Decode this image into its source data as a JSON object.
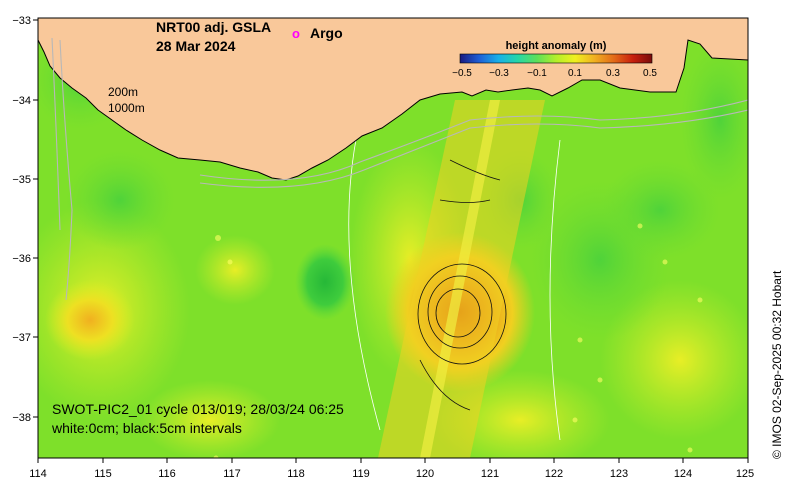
{
  "title": {
    "product": "NRT00 adj. GSLA",
    "date": "28 Mar 2024"
  },
  "argo_legend": {
    "marker": "o",
    "label": "Argo",
    "color": "#ff00ff"
  },
  "colorbar": {
    "title": "height anomaly (m)",
    "ticks": [
      "−0.5",
      "−0.3",
      "−0.1",
      "0.1",
      "0.3",
      "0.5"
    ],
    "colors": [
      "#1a1a80",
      "#1f5fd6",
      "#19b0e8",
      "#26d6a8",
      "#5ce05a",
      "#b3ef2a",
      "#f0f020",
      "#f0b020",
      "#e36b18",
      "#c8200e",
      "#7a0c0c"
    ]
  },
  "isobaths": [
    "200m",
    "1000m"
  ],
  "caption": {
    "line1": "SWOT-PIC2_01 cycle 013/019; 28/03/24 06:25",
    "line2": "white:0cm; black:5cm intervals"
  },
  "credit": "© IMOS 02-Sep-2025 00:32 Hobart",
  "axes": {
    "x_ticks": [
      "114",
      "115",
      "116",
      "117",
      "118",
      "119",
      "120",
      "121",
      "122",
      "123",
      "124",
      "125"
    ],
    "y_ticks": [
      "−33",
      "−34",
      "−35",
      "−36",
      "−37",
      "−38"
    ]
  },
  "colors": {
    "land": "#f9c89a",
    "background_field": "#7ee02a"
  }
}
